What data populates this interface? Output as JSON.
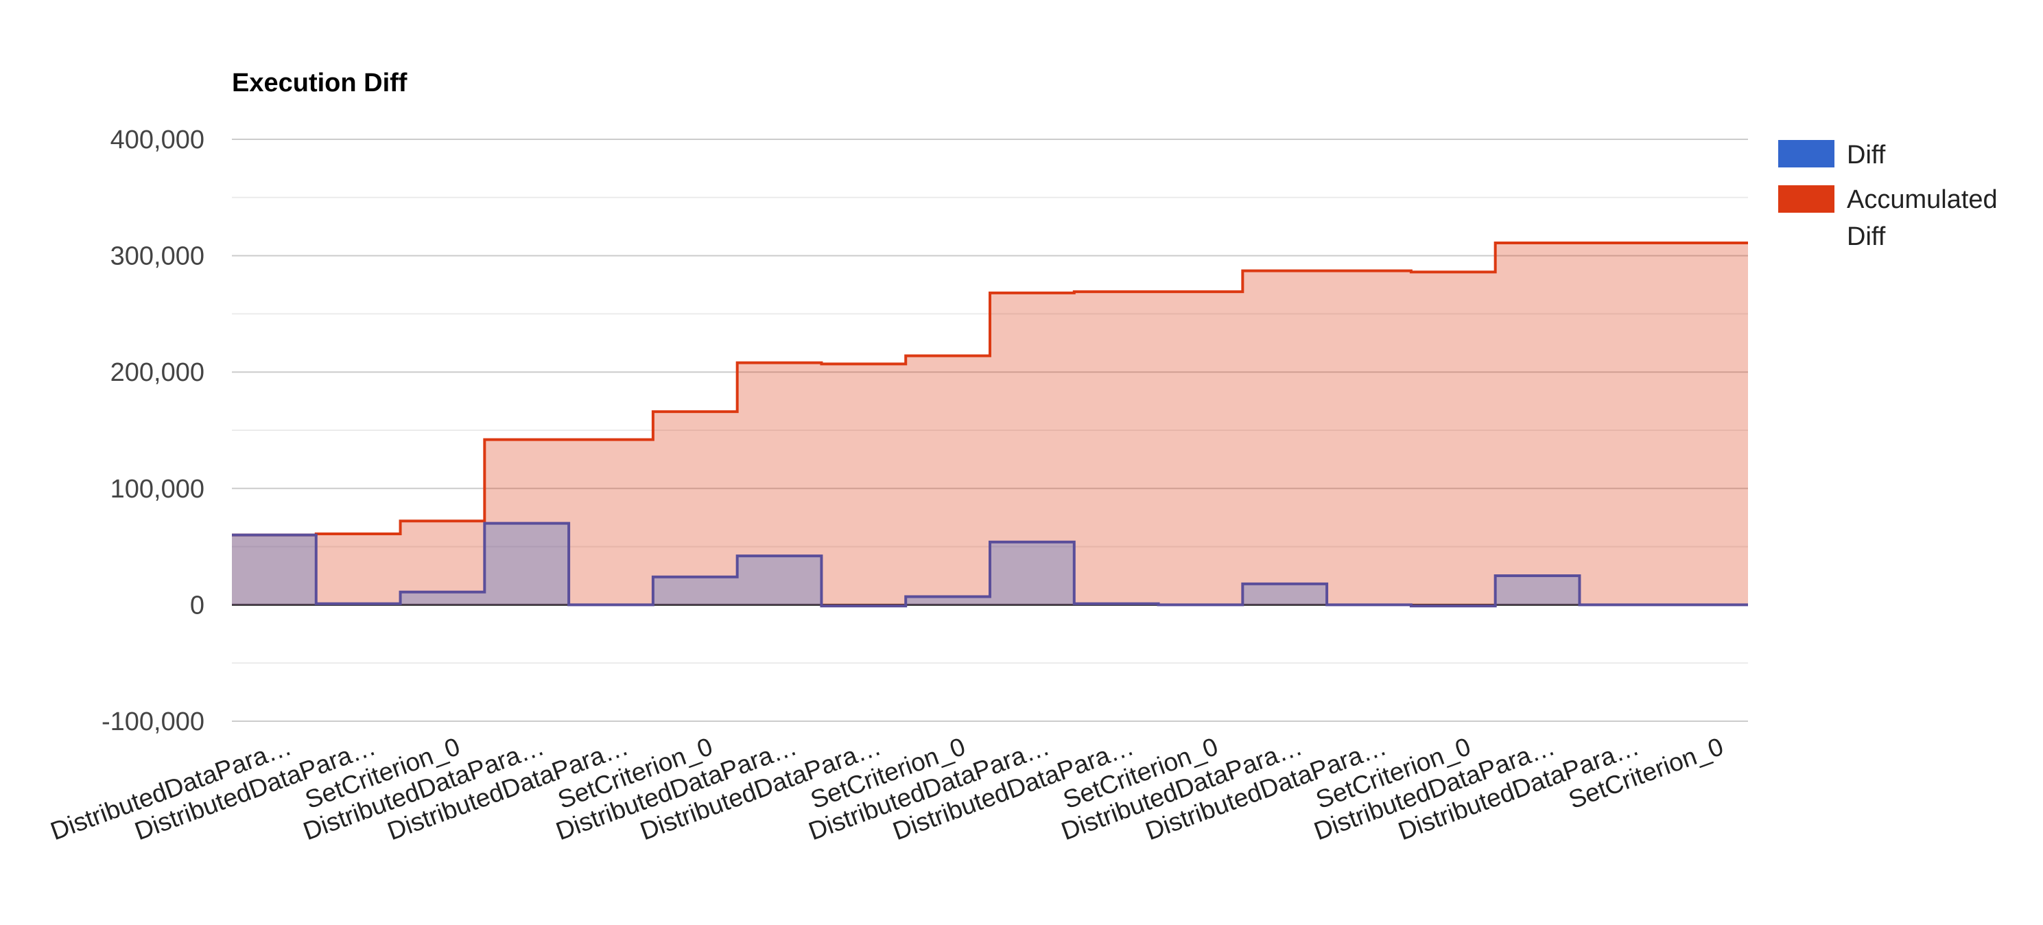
{
  "chart_data": {
    "type": "area",
    "step": true,
    "title": "Execution Diff",
    "xlabel": "",
    "ylabel": "",
    "ylim": [
      -100000,
      400000
    ],
    "yticks": [
      {
        "value": 400000,
        "label": "400,000"
      },
      {
        "value": 300000,
        "label": "300,000"
      },
      {
        "value": 200000,
        "label": "200,000"
      },
      {
        "value": 100000,
        "label": "100,000"
      },
      {
        "value": 0,
        "label": "0"
      },
      {
        "value": -100000,
        "label": "-100,000"
      }
    ],
    "minor_gridlines": [
      350000,
      250000,
      150000,
      50000,
      -50000
    ],
    "grid": true,
    "legend_position": "right",
    "categories": [
      "DistributedDataPara…",
      "DistributedDataPara…",
      "SetCriterion_0",
      "DistributedDataPara…",
      "DistributedDataPara…",
      "SetCriterion_0",
      "DistributedDataPara…",
      "DistributedDataPara…",
      "SetCriterion_0",
      "DistributedDataPara…",
      "DistributedDataPara…",
      "SetCriterion_0",
      "DistributedDataPara…",
      "DistributedDataPara…",
      "SetCriterion_0",
      "DistributedDataPara…",
      "DistributedDataPara…",
      "SetCriterion_0"
    ],
    "series": [
      {
        "name": "Diff",
        "color": "#3366cc",
        "line_color": "#5a4e9a",
        "values": [
          60000,
          1000,
          11000,
          70000,
          0,
          24000,
          42000,
          -1000,
          7000,
          54000,
          1000,
          0,
          18000,
          0,
          -1000,
          25000,
          0,
          0
        ]
      },
      {
        "name": "Accumulated Diff",
        "color": "#dc3912",
        "values": [
          60000,
          61000,
          72000,
          142000,
          142000,
          166000,
          208000,
          207000,
          214000,
          268000,
          269000,
          269000,
          287000,
          287000,
          286000,
          311000,
          311000,
          311000
        ]
      }
    ]
  }
}
